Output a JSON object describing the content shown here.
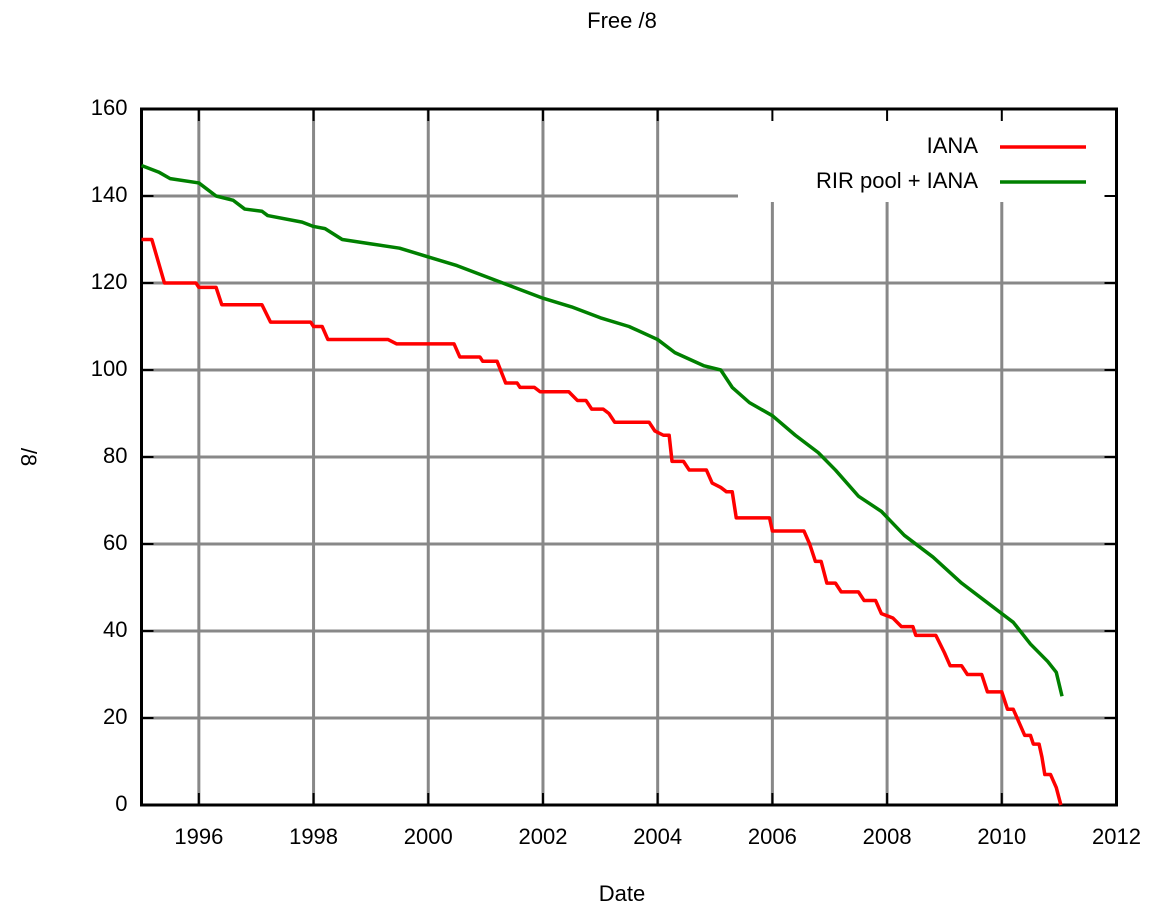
{
  "chart_data": {
    "type": "line",
    "title": "Free /8",
    "x_label": "Date",
    "y_label": "/8",
    "xlim": [
      1995,
      2012
    ],
    "xticks": [
      1996,
      1998,
      2000,
      2002,
      2004,
      2006,
      2008,
      2010,
      2012
    ],
    "ylim": [
      0,
      160
    ],
    "yticks": [
      0,
      20,
      40,
      60,
      80,
      100,
      120,
      140,
      160
    ],
    "grid": true,
    "legend": "top-right",
    "series": [
      {
        "name": "IANA",
        "color": "#ff0000",
        "x": [
          1995.0,
          1995.18,
          1995.4,
          1995.95,
          1996.0,
          1996.3,
          1996.4,
          1997.1,
          1997.25,
          1997.95,
          1998.0,
          1998.15,
          1998.25,
          1999.3,
          1999.45,
          2000.45,
          2000.55,
          2000.9,
          2000.95,
          2001.2,
          2001.35,
          2001.55,
          2001.6,
          2001.85,
          2001.95,
          2002.45,
          2002.6,
          2002.75,
          2002.85,
          2003.05,
          2003.15,
          2003.25,
          2003.85,
          2003.95,
          2004.1,
          2004.2,
          2004.25,
          2004.45,
          2004.55,
          2004.85,
          2004.95,
          2005.1,
          2005.2,
          2005.3,
          2005.37,
          2005.95,
          2006.0,
          2006.55,
          2006.65,
          2006.75,
          2006.85,
          2006.95,
          2007.1,
          2007.2,
          2007.5,
          2007.6,
          2007.8,
          2007.9,
          2008.1,
          2008.25,
          2008.45,
          2008.5,
          2008.85,
          2009.0,
          2009.1,
          2009.3,
          2009.4,
          2009.65,
          2009.75,
          2010.0,
          2010.1,
          2010.2,
          2010.3,
          2010.4,
          2010.5,
          2010.55,
          2010.65,
          2010.7,
          2010.75,
          2010.85,
          2010.95,
          2011.03
        ],
        "values": [
          130,
          130,
          120,
          120,
          119,
          119,
          115,
          115,
          111,
          111,
          110,
          110,
          107,
          107,
          106,
          106,
          103,
          103,
          102,
          102,
          97,
          97,
          96,
          96,
          95,
          95,
          93,
          93,
          91,
          91,
          90,
          88,
          88,
          86,
          85,
          85,
          79,
          79,
          77,
          77,
          74,
          73,
          72,
          72,
          66,
          66,
          63,
          63,
          60,
          56,
          56,
          51,
          51,
          49,
          49,
          47,
          47,
          44,
          43,
          41,
          41,
          39,
          39,
          35,
          32,
          32,
          30,
          30,
          26,
          26,
          22,
          22,
          19,
          16,
          16,
          14,
          14,
          11,
          7,
          7,
          4,
          0
        ]
      },
      {
        "name": "RIR pool + IANA",
        "color": "#008000",
        "x": [
          1995.0,
          1995.3,
          1995.5,
          1996.0,
          1996.1,
          1996.3,
          1996.6,
          1996.8,
          1997.1,
          1997.2,
          1997.8,
          1998.0,
          1998.2,
          1998.5,
          1999.0,
          1999.5,
          2000.0,
          2000.5,
          2001.0,
          2001.5,
          2002.0,
          2002.5,
          2003.0,
          2003.5,
          2004.0,
          2004.3,
          2004.8,
          2005.1,
          2005.3,
          2005.6,
          2006.0,
          2006.4,
          2006.8,
          2007.1,
          2007.5,
          2007.9,
          2008.3,
          2008.8,
          2009.3,
          2009.7,
          2010.0,
          2010.2,
          2010.5,
          2010.8,
          2010.95,
          2011.05
        ],
        "values": [
          147,
          145.5,
          144,
          143,
          142,
          140,
          139,
          137,
          136.5,
          135.5,
          134,
          133,
          132.5,
          130,
          129,
          128,
          126,
          124,
          121.5,
          119,
          116.5,
          114.5,
          112,
          110,
          107,
          104,
          101,
          100,
          96,
          92.5,
          89.5,
          85,
          81,
          77,
          71,
          67.5,
          62,
          57,
          51,
          47,
          44,
          42,
          37,
          33,
          30.5,
          25
        ]
      }
    ]
  }
}
